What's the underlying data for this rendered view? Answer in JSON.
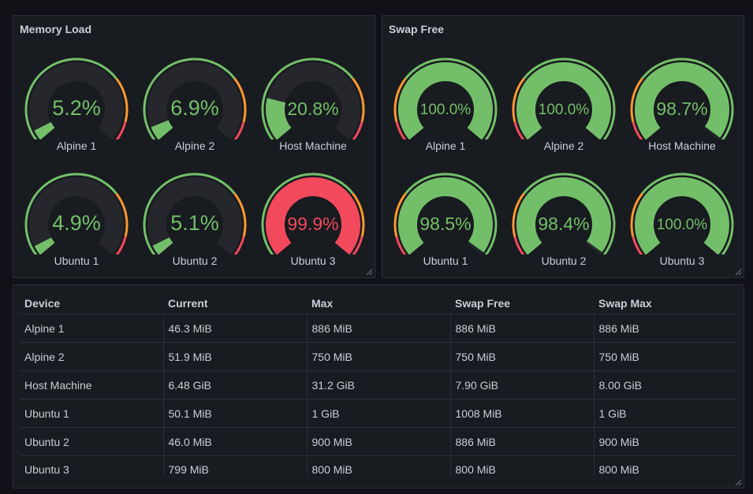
{
  "colors": {
    "green": "#73bf69",
    "red": "#f2495c",
    "yellow": "#fade2a",
    "orange": "#ff9830",
    "track": "#25272d"
  },
  "memory_load": {
    "title": "Memory Load",
    "gauges": [
      {
        "label": "Alpine 1",
        "value": 5.2,
        "text": "5.2%"
      },
      {
        "label": "Alpine 2",
        "value": 6.9,
        "text": "6.9%"
      },
      {
        "label": "Host Machine",
        "value": 20.8,
        "text": "20.8%"
      },
      {
        "label": "Ubuntu 1",
        "value": 4.9,
        "text": "4.9%"
      },
      {
        "label": "Ubuntu 2",
        "value": 5.1,
        "text": "5.1%"
      },
      {
        "label": "Ubuntu 3",
        "value": 99.9,
        "text": "99.9%"
      }
    ]
  },
  "swap_free": {
    "title": "Swap Free",
    "gauges": [
      {
        "label": "Alpine 1",
        "value": 100.0,
        "text": "100.0%"
      },
      {
        "label": "Alpine 2",
        "value": 100.0,
        "text": "100.0%"
      },
      {
        "label": "Host Machine",
        "value": 98.7,
        "text": "98.7%"
      },
      {
        "label": "Ubuntu 1",
        "value": 98.5,
        "text": "98.5%"
      },
      {
        "label": "Ubuntu 2",
        "value": 98.4,
        "text": "98.4%"
      },
      {
        "label": "Ubuntu 3",
        "value": 100.0,
        "text": "100.0%"
      }
    ]
  },
  "table": {
    "headers": [
      "Device",
      "Current",
      "Max",
      "Swap Free",
      "Swap Max"
    ],
    "rows": [
      [
        "Alpine 1",
        "46.3 MiB",
        "886 MiB",
        "886 MiB",
        "886 MiB"
      ],
      [
        "Alpine 2",
        "51.9 MiB",
        "750 MiB",
        "750 MiB",
        "750 MiB"
      ],
      [
        "Host Machine",
        "6.48 GiB",
        "31.2 GiB",
        "7.90 GiB",
        "8.00 GiB"
      ],
      [
        "Ubuntu 1",
        "50.1 MiB",
        "1 GiB",
        "1008 MiB",
        "1 GiB"
      ],
      [
        "Ubuntu 2",
        "46.0 MiB",
        "900 MiB",
        "886 MiB",
        "900 MiB"
      ],
      [
        "Ubuntu 3",
        "799 MiB",
        "800 MiB",
        "800 MiB",
        "800 MiB"
      ]
    ]
  }
}
